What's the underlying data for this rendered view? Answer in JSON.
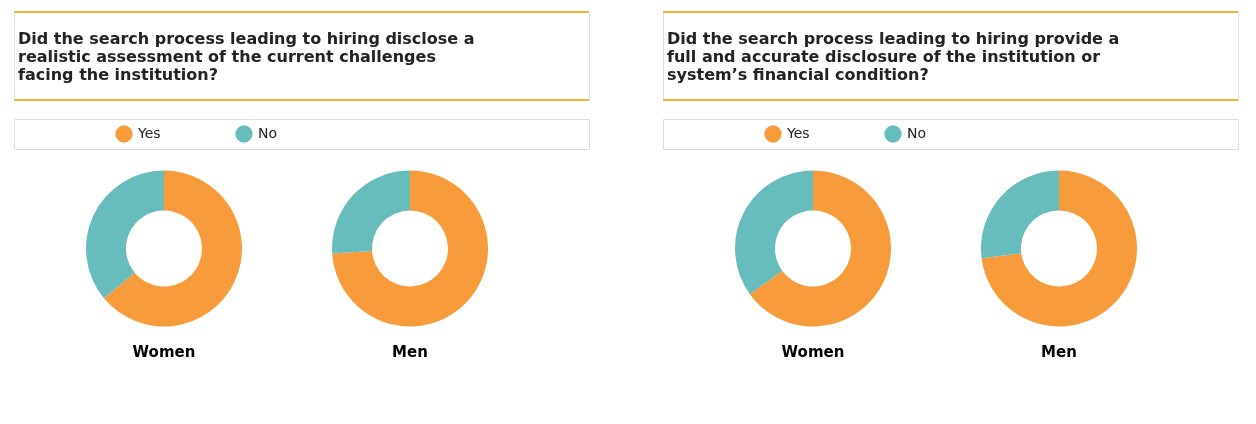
{
  "chart_data": [
    {
      "type": "donut",
      "title": "Did the search process leading to hiring disclose a realistic assessment of the current challenges facing the institution?",
      "categories": [
        "Yes",
        "No"
      ],
      "colors": [
        "#f79b3b",
        "#67bcbd"
      ],
      "legend": "top",
      "series": [
        {
          "name": "Women",
          "values": [
            64,
            36
          ]
        },
        {
          "name": "Men",
          "values": [
            74,
            26
          ]
        }
      ]
    },
    {
      "type": "donut",
      "title": "Did the search process leading to hiring provide a full and accurate disclosure of the institution or system’s financial condition?",
      "categories": [
        "Yes",
        "No"
      ],
      "colors": [
        "#f79b3b",
        "#67bcbd"
      ],
      "legend": "top",
      "series": [
        {
          "name": "Women",
          "values": [
            65,
            35
          ]
        },
        {
          "name": "Men",
          "values": [
            73,
            27
          ]
        }
      ]
    }
  ]
}
